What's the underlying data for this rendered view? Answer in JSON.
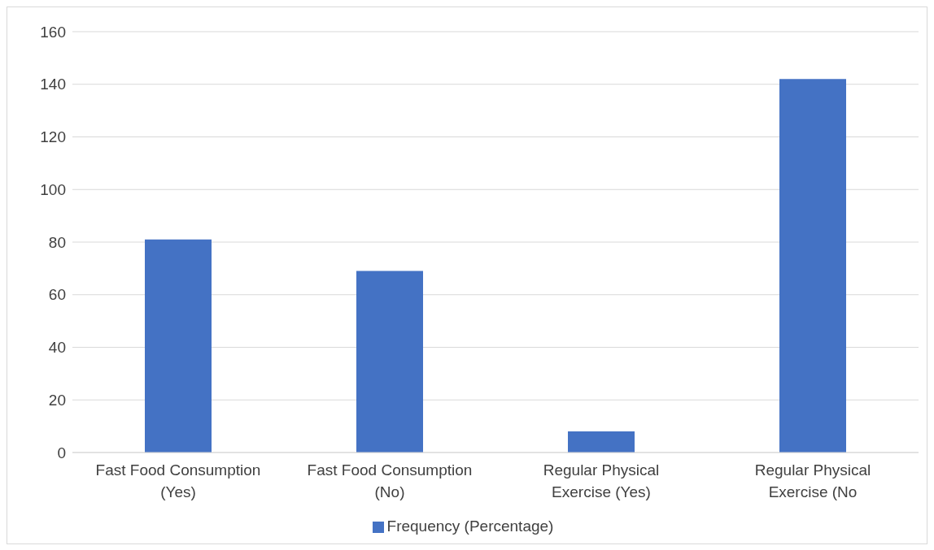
{
  "chart_data": {
    "type": "bar",
    "categories": [
      "Fast Food Consumption (Yes)",
      "Fast Food Consumption (No)",
      "Regular Physical Exercise (Yes)",
      "Regular Physical Exercise (No"
    ],
    "series": [
      {
        "name": "Frequency (Percentage)",
        "color": "#4472c4",
        "values": [
          81,
          69,
          8,
          142
        ]
      }
    ],
    "ylim": [
      0,
      160
    ],
    "yticks": [
      0,
      20,
      40,
      60,
      80,
      100,
      120,
      140,
      160
    ],
    "grid": "y",
    "legend": "bottom"
  }
}
